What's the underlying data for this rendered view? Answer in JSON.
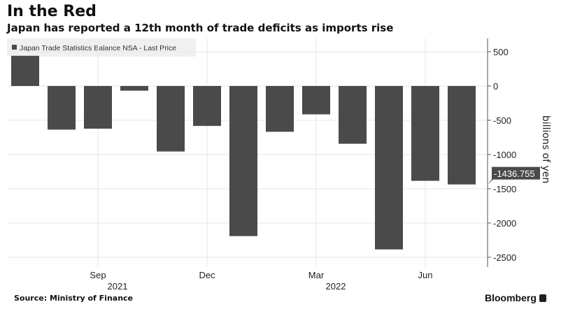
{
  "header": {
    "title": "In the Red",
    "subtitle": "Japan has reported a 12th month of trade deficits as imports rise"
  },
  "footer": {
    "source": "Source: Ministry of Finance",
    "brand": "Bloomberg"
  },
  "colors": {
    "bar": "#4a4a4a",
    "grid": "#e6e6e6",
    "axis": "#555555"
  },
  "chart_data": {
    "type": "bar",
    "title": "In the Red",
    "subtitle": "Japan has reported a 12th month of trade deficits as imports rise",
    "legend": {
      "entries": [
        "Japan Trade Statistics Balance NSA - Last Price"
      ],
      "placement": "top-left"
    },
    "categories": [
      "Jul 2021",
      "Aug 2021",
      "Sep 2021",
      "Oct 2021",
      "Nov 2021",
      "Dec 2021",
      "Jan 2022",
      "Feb 2022",
      "Mar 2022",
      "Apr 2022",
      "May 2022",
      "Jun 2022",
      "Jul 2022"
    ],
    "series": [
      {
        "name": "Japan Trade Statistics Balance NSA - Last Price",
        "values": [
          441,
          -637,
          -623,
          -68,
          -956,
          -583,
          -2191,
          -668,
          -414,
          -843,
          -2385,
          -1384,
          -1436.755
        ]
      }
    ],
    "x_tick_labels": [
      {
        "category": "Sep 2021",
        "label": "Sep"
      },
      {
        "category": "Dec 2021",
        "label": "Dec"
      },
      {
        "category": "Mar 2022",
        "label": "Mar"
      },
      {
        "category": "Jun 2022",
        "label": "Jun"
      }
    ],
    "year_labels": [
      {
        "category": "Sep 2021",
        "label": "2021"
      },
      {
        "category": "Mar 2022",
        "label": "2022"
      }
    ],
    "ylabel": "billions of yen",
    "y_ticks": [
      500,
      0,
      -500,
      -1000,
      -1500,
      -2000,
      -2500
    ],
    "y_tick_labels": [
      "500",
      "0",
      "-500",
      "-1000",
      "-1500",
      "-2000",
      "-2500"
    ],
    "ylim": [
      -2650,
      680
    ],
    "y_axis_side": "right",
    "last_value_label": "-1436.755",
    "grid": true
  }
}
